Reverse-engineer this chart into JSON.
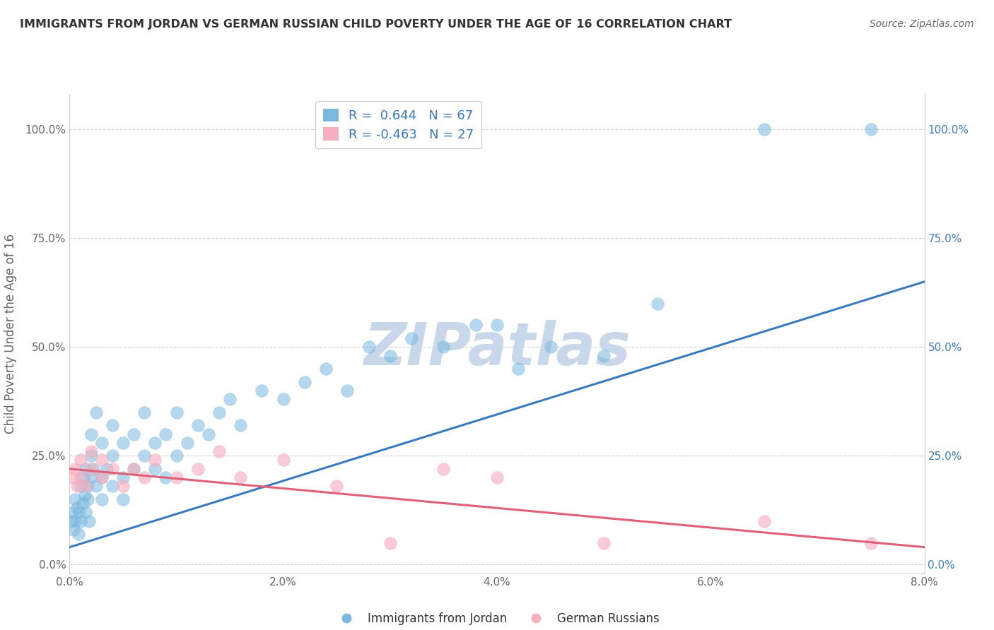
{
  "title": "IMMIGRANTS FROM JORDAN VS GERMAN RUSSIAN CHILD POVERTY UNDER THE AGE OF 16 CORRELATION CHART",
  "source": "Source: ZipAtlas.com",
  "ylabel": "Child Poverty Under the Age of 16",
  "xlim": [
    0.0,
    0.08
  ],
  "ylim": [
    -0.02,
    1.08
  ],
  "legend1_label": "Immigrants from Jordan",
  "legend2_label": "German Russians",
  "r1": 0.644,
  "n1": 67,
  "r2": -0.463,
  "n2": 27,
  "blue_color": "#7ab8e0",
  "pink_color": "#f5afc0",
  "line_blue": "#3a7abf",
  "line_pink": "#e0607a",
  "watermark_color": "#c8d8ea",
  "blue_scatter_x": [
    0.0002,
    0.0003,
    0.0004,
    0.0005,
    0.0006,
    0.0007,
    0.0008,
    0.0009,
    0.001,
    0.001,
    0.0012,
    0.0013,
    0.0014,
    0.0015,
    0.0015,
    0.0016,
    0.0017,
    0.0018,
    0.002,
    0.002,
    0.002,
    0.0022,
    0.0025,
    0.0025,
    0.003,
    0.003,
    0.003,
    0.0035,
    0.004,
    0.004,
    0.004,
    0.005,
    0.005,
    0.005,
    0.006,
    0.006,
    0.007,
    0.007,
    0.008,
    0.008,
    0.009,
    0.009,
    0.01,
    0.01,
    0.011,
    0.012,
    0.013,
    0.014,
    0.015,
    0.016,
    0.018,
    0.02,
    0.022,
    0.024,
    0.026,
    0.028,
    0.03,
    0.032,
    0.035,
    0.038,
    0.04,
    0.042,
    0.045,
    0.05,
    0.055,
    0.065,
    0.075
  ],
  "blue_scatter_y": [
    0.1,
    0.12,
    0.08,
    0.15,
    0.1,
    0.13,
    0.07,
    0.12,
    0.1,
    0.18,
    0.14,
    0.2,
    0.16,
    0.12,
    0.22,
    0.18,
    0.15,
    0.1,
    0.2,
    0.25,
    0.3,
    0.22,
    0.18,
    0.35,
    0.15,
    0.2,
    0.28,
    0.22,
    0.18,
    0.25,
    0.32,
    0.2,
    0.28,
    0.15,
    0.22,
    0.3,
    0.25,
    0.35,
    0.28,
    0.22,
    0.3,
    0.2,
    0.25,
    0.35,
    0.28,
    0.32,
    0.3,
    0.35,
    0.38,
    0.32,
    0.4,
    0.38,
    0.42,
    0.45,
    0.4,
    0.5,
    0.48,
    0.52,
    0.5,
    0.55,
    0.55,
    0.45,
    0.5,
    0.48,
    0.6,
    1.0,
    1.0
  ],
  "pink_scatter_x": [
    0.0003,
    0.0005,
    0.0007,
    0.001,
    0.001,
    0.0015,
    0.002,
    0.002,
    0.003,
    0.003,
    0.004,
    0.005,
    0.006,
    0.007,
    0.008,
    0.01,
    0.012,
    0.014,
    0.016,
    0.02,
    0.025,
    0.03,
    0.035,
    0.04,
    0.05,
    0.065,
    0.075
  ],
  "pink_scatter_y": [
    0.2,
    0.22,
    0.18,
    0.24,
    0.2,
    0.18,
    0.22,
    0.26,
    0.2,
    0.24,
    0.22,
    0.18,
    0.22,
    0.2,
    0.24,
    0.2,
    0.22,
    0.26,
    0.2,
    0.24,
    0.18,
    0.05,
    0.22,
    0.2,
    0.05,
    0.1,
    0.05
  ],
  "grid_color": "#cccccc",
  "bg_color": "#ffffff",
  "title_color": "#333333",
  "axis_label_color": "#666666",
  "tick_label_color": "#666666",
  "right_tick_color": "#3a7abf"
}
